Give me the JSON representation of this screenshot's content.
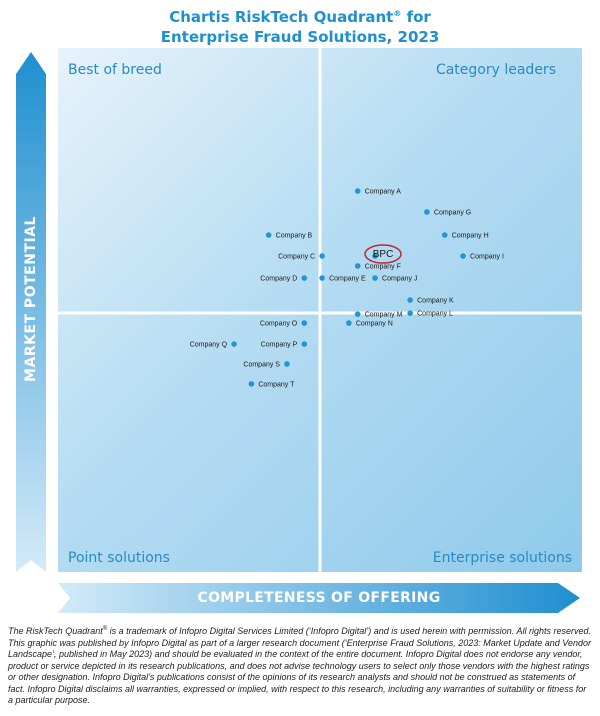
{
  "title_line1": "Chartis RiskTech Quadrant",
  "title_reg": "®",
  "title_line1_suffix": " for",
  "title_line2": "Enterprise Fraud Solutions, 2023",
  "colors": {
    "accent": "#1f8fd0",
    "highlight_ring": "#c0282d",
    "dot": "#2196d3"
  },
  "chart_data": {
    "type": "scatter",
    "xlabel": "COMPLETENESS OF OFFERING",
    "ylabel": "MARKET POTENTIAL",
    "quadrants": {
      "top_left": "Best of breed",
      "top_right": "Category leaders",
      "bottom_left": "Point solutions",
      "bottom_right": "Enterprise solutions"
    },
    "highlight": "BPC",
    "points": [
      {
        "label": "Company A",
        "x": 0.572,
        "y": 0.727,
        "side": "right"
      },
      {
        "label": "Company G",
        "x": 0.704,
        "y": 0.687,
        "side": "right"
      },
      {
        "label": "Company B",
        "x": 0.402,
        "y": 0.643,
        "side": "right"
      },
      {
        "label": "Company H",
        "x": 0.738,
        "y": 0.643,
        "side": "right"
      },
      {
        "label": "Company C",
        "x": 0.504,
        "y": 0.603,
        "side": "left"
      },
      {
        "label": "BPC",
        "x": 0.605,
        "y": 0.603,
        "side": "none"
      },
      {
        "label": "Company I",
        "x": 0.773,
        "y": 0.603,
        "side": "right"
      },
      {
        "label": "Company F",
        "x": 0.572,
        "y": 0.584,
        "side": "right"
      },
      {
        "label": "Company D",
        "x": 0.47,
        "y": 0.561,
        "side": "left"
      },
      {
        "label": "Company E",
        "x": 0.504,
        "y": 0.561,
        "side": "right"
      },
      {
        "label": "Company J",
        "x": 0.605,
        "y": 0.561,
        "side": "right"
      },
      {
        "label": "Company K",
        "x": 0.672,
        "y": 0.519,
        "side": "right"
      },
      {
        "label": "Company M",
        "x": 0.572,
        "y": 0.492,
        "side": "right"
      },
      {
        "label": "Company L",
        "x": 0.672,
        "y": 0.494,
        "side": "right"
      },
      {
        "label": "Company O",
        "x": 0.47,
        "y": 0.475,
        "side": "left"
      },
      {
        "label": "Company N",
        "x": 0.555,
        "y": 0.475,
        "side": "right"
      },
      {
        "label": "Company Q",
        "x": 0.336,
        "y": 0.435,
        "side": "left"
      },
      {
        "label": "Company P",
        "x": 0.47,
        "y": 0.435,
        "side": "left"
      },
      {
        "label": "Company S",
        "x": 0.437,
        "y": 0.397,
        "side": "left"
      },
      {
        "label": "Company T",
        "x": 0.369,
        "y": 0.359,
        "side": "right"
      }
    ]
  },
  "footnote": {
    "part1": "The RiskTech Quadrant",
    "reg": "®",
    "part2": " is a trademark of Infopro Digital Services Limited (‘Infopro Digital’) and is used herein with permission. All rights reserved. This graphic was published by Infopro Digital as part of a larger research document (‘Enterprise Fraud Solutions, 2023: Market Update and Vendor Landscape’, published in May 2023) and should be evaluated in the context of the entire document. Infopro Digital does not endorse any vendor, product or service depicted in its research publications, and does not advise technology users to select only those vendors with the highest ratings or other designation. Infopro Digital’s publications consist of the opinions of its research analysts and should not be construed as statements of fact. Infopro Digital disclaims all warranties, expressed or implied, with respect to this research, including any warranties of suitability or fitness for a particular purpose."
  }
}
